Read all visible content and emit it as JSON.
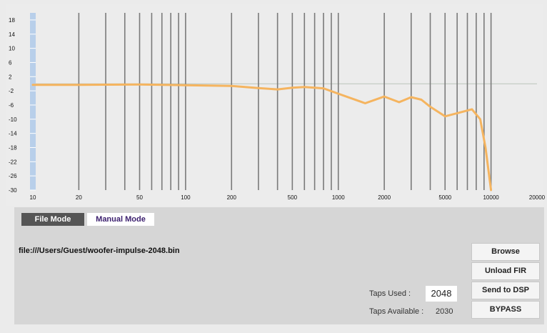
{
  "chart_data": {
    "type": "line",
    "xscale": "log",
    "x": [
      10,
      20,
      50,
      100,
      200,
      300,
      400,
      500,
      600,
      800,
      1000,
      1500,
      2000,
      2500,
      3000,
      3500,
      4000,
      5000,
      6000,
      7500,
      8500,
      9200,
      10000
    ],
    "values": [
      -0.3,
      -0.3,
      -0.2,
      -0.4,
      -0.6,
      -1.2,
      -1.6,
      -1.1,
      -0.9,
      -1.3,
      -2.8,
      -5.5,
      -3.6,
      -5.2,
      -3.8,
      -4.5,
      -6.5,
      -9.2,
      -8.3,
      -7.2,
      -10,
      -18,
      -30
    ],
    "color": "#f5b45f",
    "xlim": [
      10,
      20000
    ],
    "ylim": [
      -30,
      20
    ],
    "xticks": [
      10,
      20,
      50,
      100,
      200,
      500,
      1000,
      2000,
      5000,
      10000,
      20000
    ],
    "minor_xticks": [
      20,
      30,
      40,
      50,
      60,
      70,
      80,
      90,
      100,
      200,
      300,
      400,
      500,
      600,
      700,
      800,
      900,
      1000,
      2000,
      3000,
      4000,
      5000,
      6000,
      7000,
      8000,
      9000,
      10000
    ],
    "yticks": [
      18,
      14,
      10,
      6,
      2,
      -2,
      -6,
      -10,
      -14,
      -18,
      -22,
      -26,
      -30
    ]
  },
  "ui": {
    "tabs": [
      "File Mode",
      "Manual Mode"
    ],
    "file_path": "file:///Users/Guest/woofer-impulse-2048.bin",
    "buttons": [
      "Browse",
      "Unload FIR",
      "Send to DSP",
      "BYPASS"
    ],
    "taps_used_label": "Taps Used :",
    "taps_used": "2048",
    "taps_available_label": "Taps Available :",
    "taps_available": "2030"
  }
}
